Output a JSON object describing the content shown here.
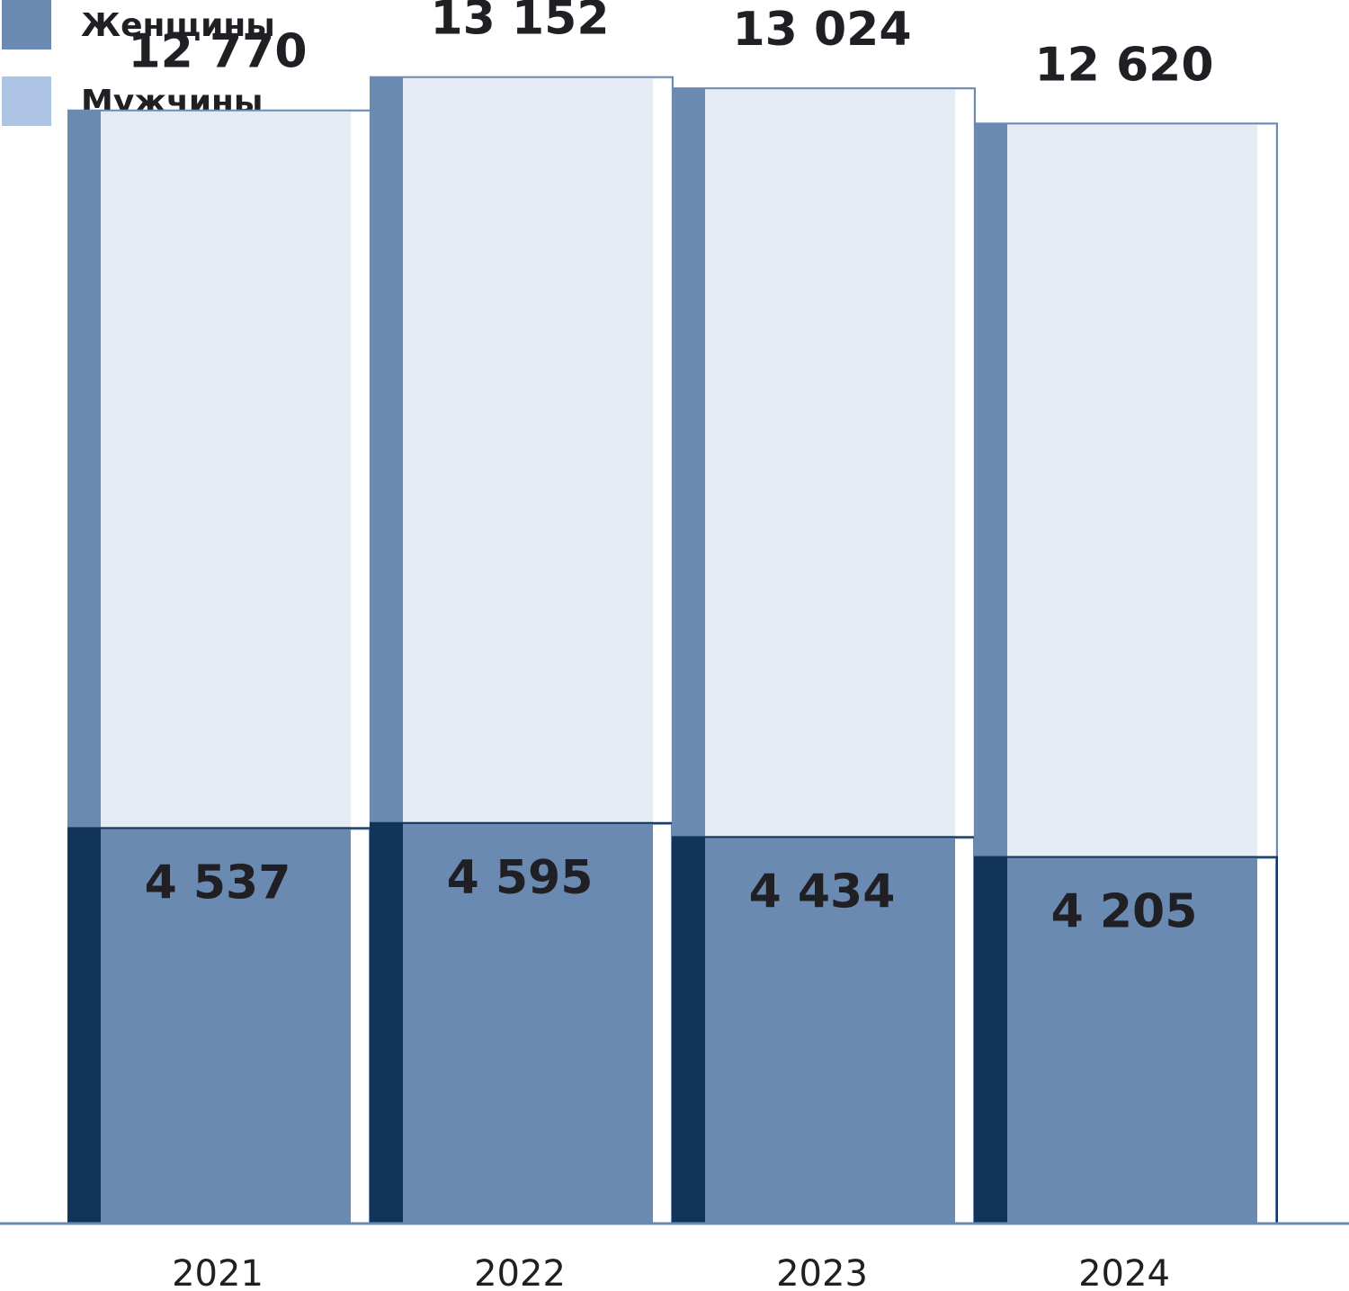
{
  "chart_data": {
    "type": "bar",
    "categories": [
      "2021",
      "2022",
      "2023",
      "2024"
    ],
    "series": [
      {
        "name": "Женщины",
        "color": "#6a8ab2",
        "values": [
          4537,
          4595,
          4434,
          4205
        ],
        "value_labels": [
          "4 537",
          "4 595",
          "4 434",
          "4 205"
        ]
      },
      {
        "name": "Мужчины",
        "color": "#adc4e4"
      }
    ],
    "totals": [
      12770,
      13152,
      13024,
      12620
    ],
    "total_labels": [
      "12 770",
      "13 152",
      "13 024",
      "12 620"
    ],
    "ylim": [
      0,
      13500
    ]
  }
}
